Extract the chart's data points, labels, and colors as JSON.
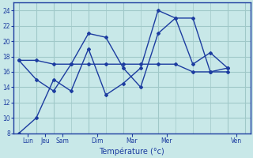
{
  "title": "",
  "xlabel": "Température (°c)",
  "ylabel": "",
  "background_color": "#c8e8e8",
  "grid_color": "#a0c8c8",
  "line_color": "#1c3ca0",
  "xlim_min": -0.3,
  "xlim_max": 13.3,
  "ylim_min": 8,
  "ylim_max": 25,
  "yticks": [
    8,
    10,
    12,
    14,
    16,
    18,
    20,
    22,
    24
  ],
  "day_tick_positions": [
    0.5,
    1.5,
    2.5,
    4.5,
    6.5,
    8.5,
    12.5
  ],
  "day_tick_labels": [
    "Lun",
    "Jeu",
    "Sam",
    "Dim",
    "Mar",
    "Mer",
    "Ven"
  ],
  "vline_positions": [
    0,
    1,
    2,
    4,
    6,
    8,
    12,
    13
  ],
  "line1_x": [
    0,
    1,
    2,
    3,
    4,
    5,
    6,
    7,
    8,
    9,
    10,
    11,
    12
  ],
  "line1_y": [
    8,
    10,
    15.0,
    13.5,
    19.0,
    13.0,
    14.5,
    16.5,
    24.0,
    23.0,
    23.0,
    16.0,
    16.0
  ],
  "line2_x": [
    0,
    1,
    2,
    3,
    4,
    5,
    6,
    7,
    8,
    9,
    10,
    11,
    12
  ],
  "line2_y": [
    17.5,
    15.0,
    13.5,
    17.0,
    21.0,
    20.5,
    16.5,
    14.0,
    21.0,
    23.0,
    17.0,
    18.5,
    16.5
  ],
  "line3_x": [
    0,
    1,
    2,
    3,
    4,
    5,
    6,
    7,
    8,
    9,
    10,
    11,
    12
  ],
  "line3_y": [
    17.5,
    17.5,
    17.0,
    17.0,
    17.0,
    17.0,
    17.0,
    17.0,
    17.0,
    17.0,
    16.0,
    16.0,
    16.5
  ]
}
